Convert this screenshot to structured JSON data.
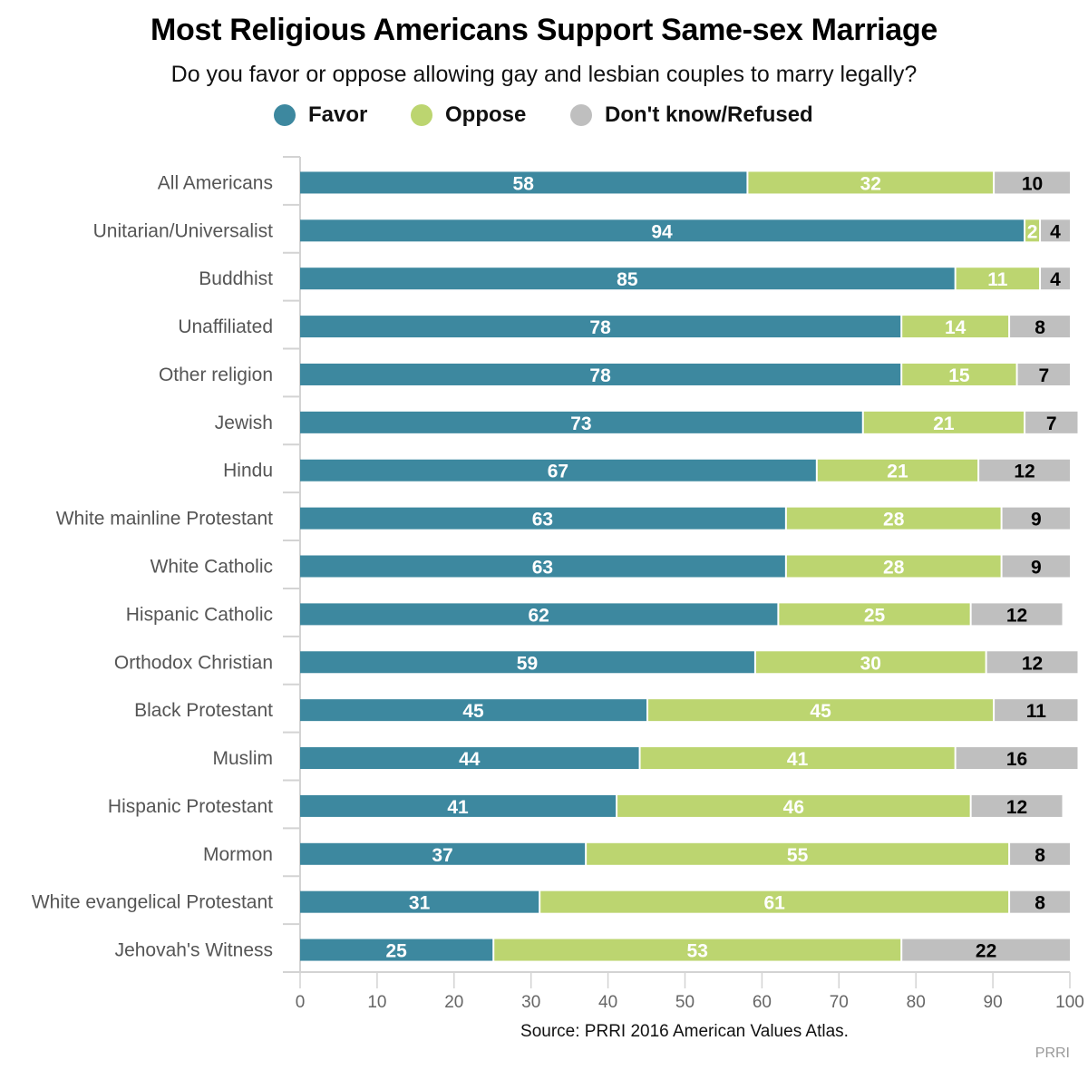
{
  "chart_data": {
    "type": "bar",
    "orientation": "horizontal",
    "stacked": true,
    "title": "Most Religious Americans Support Same-sex Marriage",
    "subtitle": "Do you favor or oppose allowing gay and lesbian couples to marry legally?",
    "xlabel": "",
    "ylabel": "",
    "xlim": [
      0,
      100
    ],
    "x_ticks": [
      0,
      10,
      20,
      30,
      40,
      50,
      60,
      70,
      80,
      90,
      100
    ],
    "grid": false,
    "legend_position": "top-center",
    "categories": [
      "All Americans",
      "Unitarian/Universalist",
      "Buddhist",
      "Unaffiliated",
      "Other religion",
      "Jewish",
      "Hindu",
      "White mainline Protestant",
      "White Catholic",
      "Hispanic Catholic",
      "Orthodox Christian",
      "Black Protestant",
      "Muslim",
      "Hispanic Protestant",
      "Mormon",
      "White evangelical Protestant",
      "Jehovah's Witness"
    ],
    "series": [
      {
        "name": "Favor",
        "color": "#3d889f",
        "label_color": "#ffffff",
        "values": [
          58,
          94,
          85,
          78,
          78,
          73,
          67,
          63,
          63,
          62,
          59,
          45,
          44,
          41,
          37,
          31,
          25
        ]
      },
      {
        "name": "Oppose",
        "color": "#bcd570",
        "label_color": "#ffffff",
        "values": [
          32,
          2,
          11,
          14,
          15,
          21,
          21,
          28,
          28,
          25,
          30,
          45,
          41,
          46,
          55,
          61,
          53
        ]
      },
      {
        "name": "Don't know/Refused",
        "color": "#bfbfbf",
        "label_color": "#000000",
        "values": [
          10,
          4,
          4,
          8,
          7,
          7,
          12,
          9,
          9,
          12,
          12,
          11,
          16,
          12,
          8,
          8,
          22
        ]
      }
    ],
    "source": "Source: PRRI 2016 American Values Atlas.",
    "credit": "PRRI"
  }
}
